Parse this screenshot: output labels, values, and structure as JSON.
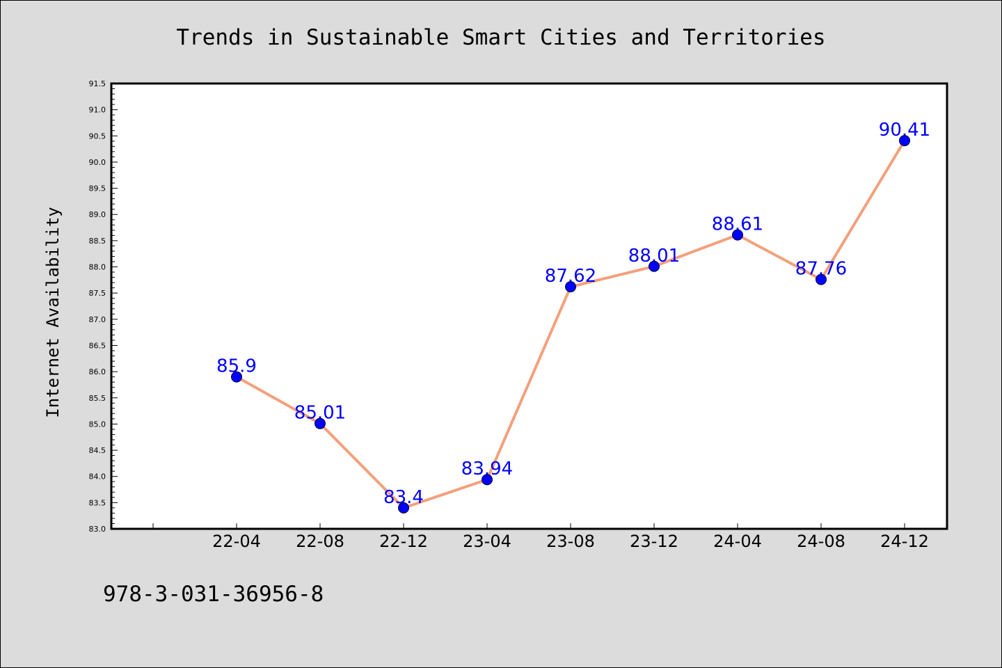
{
  "chart_data": {
    "type": "line",
    "title": "Trends in Sustainable Smart Cities and Territories",
    "xlabel": "",
    "ylabel": "Internet Availability",
    "categories": [
      "22-04",
      "22-08",
      "22-12",
      "23-04",
      "23-08",
      "23-12",
      "24-04",
      "24-08",
      "24-12"
    ],
    "series": [
      {
        "values": [
          85.9,
          85.01,
          83.4,
          83.94,
          87.62,
          88.01,
          88.61,
          87.76,
          90.41
        ]
      }
    ],
    "data_labels": [
      "85.9",
      "85.01",
      "83.4",
      "83.94",
      "87.62",
      "88.01",
      "88.61",
      "87.76",
      "90.41"
    ],
    "ylim": [
      83.0,
      91.5
    ],
    "yticks": [
      "83.0",
      "83.5",
      "84.0",
      "84.5",
      "85.0",
      "85.5",
      "86.0",
      "86.5",
      "87.0",
      "87.5",
      "88.0",
      "88.5",
      "89.0",
      "89.5",
      "90.0",
      "90.5",
      "91.0",
      "91.5"
    ],
    "grid": false,
    "colors": {
      "line": "#f4a07c",
      "marker": "#0000ff",
      "data_label": "#0000ff",
      "plot_background": "#ffffff",
      "figure_background": "#dcdcdc"
    }
  },
  "footer": {
    "isbn": "978-3-031-36956-8"
  }
}
